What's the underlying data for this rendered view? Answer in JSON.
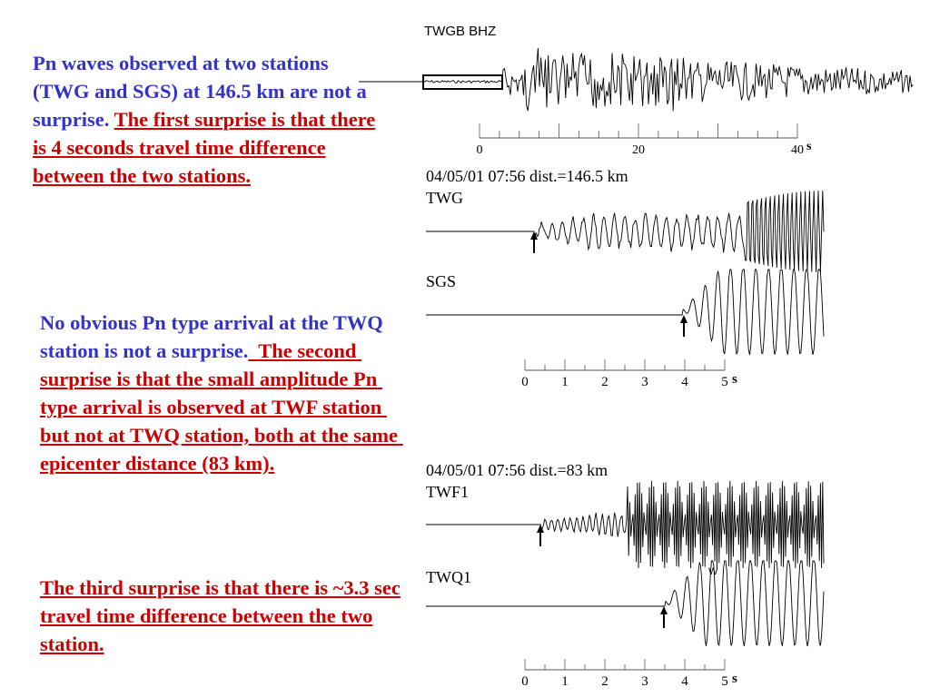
{
  "text_block_1": {
    "normal": "Pn waves observed at two stations (TWG and SGS) at 146.5 km are not a surprise.",
    "underlined": "The first surprise is that there is 4 seconds travel time difference between the two stations."
  },
  "text_block_2": {
    "normal": "No obvious Pn type arrival at the TWQ station is not a surprise.",
    "underlined": "  The second surprise is that the small amplitude Pn type arrival is observed at TWF station but not at TWQ station, both at the same epicenter distance (83 km)."
  },
  "text_block_3": {
    "underlined": "The third surprise is that there is ~3.3 sec travel time difference between the two station."
  },
  "top_trace": {
    "label": "TWGB  BHZ",
    "ticks": [
      "0",
      "20",
      "40"
    ],
    "unit": "s"
  },
  "panel_1": {
    "header": "04/05/01 07:56 dist.=146.5 km",
    "trace_a": "TWG",
    "trace_b": "SGS",
    "ticks": [
      "0",
      "1",
      "2",
      "3",
      "4",
      "5"
    ],
    "unit": "s"
  },
  "panel_2": {
    "header": "04/05/01 07:56 dist.=83 km",
    "trace_a": "TWF1",
    "trace_b": "TWQ1",
    "marker": "W",
    "ticks": [
      "0",
      "1",
      "2",
      "3",
      "4",
      "5"
    ],
    "unit": "s"
  },
  "colors": {
    "blue_text": "#3333cc",
    "red_text": "#cc0000",
    "trace": "#000000"
  }
}
